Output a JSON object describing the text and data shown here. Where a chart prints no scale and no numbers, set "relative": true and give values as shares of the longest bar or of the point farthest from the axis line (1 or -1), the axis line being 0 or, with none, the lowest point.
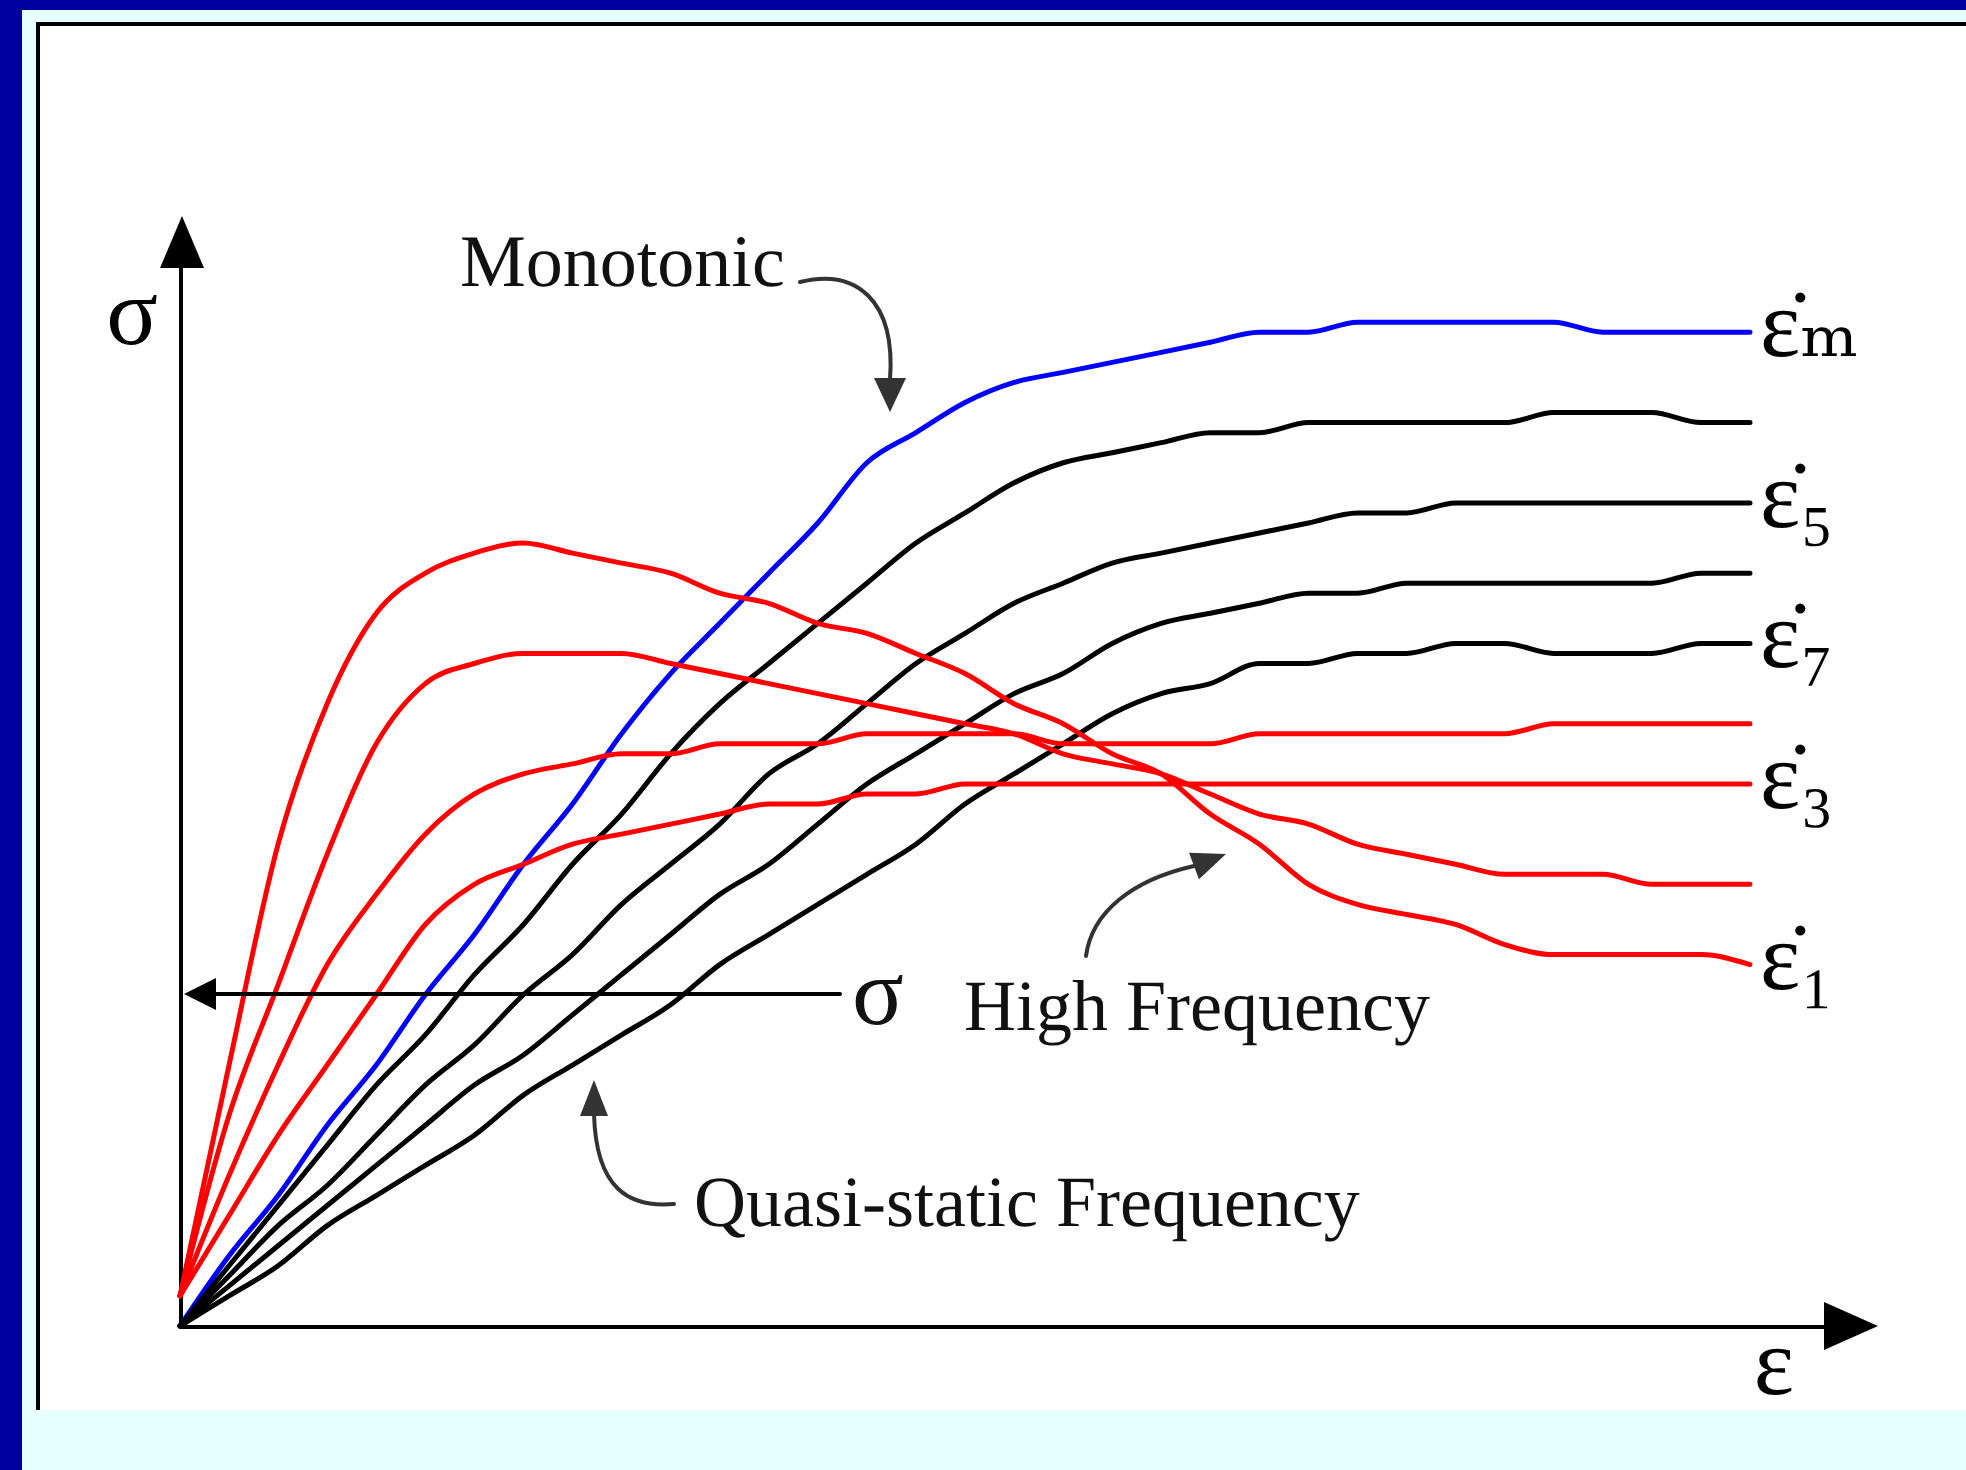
{
  "chart_data": {
    "type": "line",
    "relative": true,
    "xlabel": "ε",
    "ylabel": "σ",
    "annotations": [
      "Monotonic",
      "High Frequency",
      "Quasi-static Frequency",
      "σ"
    ],
    "categories": [
      null,
      null,
      null,
      null,
      null,
      null,
      null,
      null,
      null,
      null,
      null,
      null,
      null,
      null,
      null,
      null,
      null,
      null,
      null,
      null,
      null,
      null,
      null,
      null,
      null,
      null,
      null,
      null,
      null,
      null,
      null,
      null,
      null
    ],
    "series": [
      {
        "name": "ε̇ₘ",
        "color": "#0000ff",
        "values": [
          0,
          0.07,
          0.13,
          0.2,
          0.26,
          0.33,
          0.39,
          0.46,
          0.52,
          0.59,
          0.65,
          0.7,
          0.75,
          0.8,
          0.86,
          0.89,
          0.92,
          0.94,
          0.95,
          0.96,
          0.97,
          0.98,
          0.99,
          0.99,
          1,
          1,
          1,
          1,
          1,
          0.99,
          0.99,
          0.99,
          0.99
        ]
      },
      {
        "color": "#000000",
        "values": [
          0,
          0.06,
          0.12,
          0.18,
          0.24,
          0.29,
          0.35,
          0.4,
          0.46,
          0.51,
          0.57,
          0.62,
          0.66,
          0.7,
          0.74,
          0.78,
          0.81,
          0.84,
          0.86,
          0.87,
          0.88,
          0.89,
          0.89,
          0.9,
          0.9,
          0.9,
          0.9,
          0.9,
          0.91,
          0.91,
          0.91,
          0.9,
          0.9
        ]
      },
      {
        "name": "ε̇₅",
        "color": "#000000",
        "values": [
          0,
          0.05,
          0.1,
          0.14,
          0.19,
          0.24,
          0.28,
          0.33,
          0.37,
          0.42,
          0.46,
          0.5,
          0.55,
          0.58,
          0.62,
          0.66,
          0.69,
          0.72,
          0.74,
          0.76,
          0.77,
          0.78,
          0.79,
          0.8,
          0.81,
          0.81,
          0.82,
          0.82,
          0.82,
          0.82,
          0.82,
          0.82,
          0.82
        ]
      },
      {
        "color": "#000000",
        "values": [
          0,
          0.04,
          0.08,
          0.12,
          0.16,
          0.2,
          0.24,
          0.27,
          0.31,
          0.35,
          0.39,
          0.43,
          0.46,
          0.5,
          0.54,
          0.57,
          0.6,
          0.63,
          0.65,
          0.68,
          0.7,
          0.71,
          0.72,
          0.73,
          0.73,
          0.74,
          0.74,
          0.74,
          0.74,
          0.74,
          0.74,
          0.75,
          0.75
        ]
      },
      {
        "name": "ε̇₇",
        "color": "#000000",
        "values": [
          0,
          0.03,
          0.06,
          0.1,
          0.13,
          0.16,
          0.19,
          0.23,
          0.26,
          0.29,
          0.32,
          0.36,
          0.39,
          0.42,
          0.45,
          0.48,
          0.52,
          0.55,
          0.58,
          0.61,
          0.63,
          0.64,
          0.66,
          0.66,
          0.67,
          0.67,
          0.68,
          0.68,
          0.67,
          0.67,
          0.67,
          0.68,
          0.68
        ]
      },
      {
        "color": "#ff0000",
        "values": [
          0.03,
          0.15,
          0.26,
          0.36,
          0.43,
          0.49,
          0.53,
          0.55,
          0.56,
          0.57,
          0.57,
          0.58,
          0.58,
          0.58,
          0.59,
          0.59,
          0.59,
          0.59,
          0.58,
          0.58,
          0.58,
          0.58,
          0.59,
          0.59,
          0.59,
          0.59,
          0.59,
          0.59,
          0.6,
          0.6,
          0.6,
          0.6,
          0.6
        ]
      },
      {
        "name": "ε̇₃",
        "color": "#ff0000",
        "values": [
          0.03,
          0.11,
          0.19,
          0.26,
          0.33,
          0.4,
          0.44,
          0.46,
          0.48,
          0.49,
          0.5,
          0.51,
          0.52,
          0.52,
          0.53,
          0.53,
          0.54,
          0.54,
          0.54,
          0.54,
          0.54,
          0.54,
          0.54,
          0.54,
          0.54,
          0.54,
          0.54,
          0.54,
          0.54,
          0.54,
          0.54,
          0.54,
          0.54
        ]
      },
      {
        "color": "#ff0000",
        "values": [
          0.03,
          0.21,
          0.34,
          0.47,
          0.58,
          0.64,
          0.66,
          0.67,
          0.67,
          0.67,
          0.66,
          0.65,
          0.64,
          0.63,
          0.62,
          0.61,
          0.6,
          0.59,
          0.57,
          0.56,
          0.55,
          0.53,
          0.51,
          0.5,
          0.48,
          0.47,
          0.46,
          0.45,
          0.45,
          0.45,
          0.44,
          0.44,
          0.44
        ]
      },
      {
        "name": "ε̇₁",
        "color": "#ff0000",
        "values": [
          0.03,
          0.26,
          0.48,
          0.62,
          0.71,
          0.75,
          0.77,
          0.78,
          0.77,
          0.76,
          0.75,
          0.73,
          0.72,
          0.7,
          0.69,
          0.67,
          0.65,
          0.62,
          0.6,
          0.57,
          0.55,
          0.51,
          0.48,
          0.44,
          0.42,
          0.41,
          0.4,
          0.38,
          0.37,
          0.37,
          0.37,
          0.37,
          0.36
        ]
      }
    ]
  }
}
